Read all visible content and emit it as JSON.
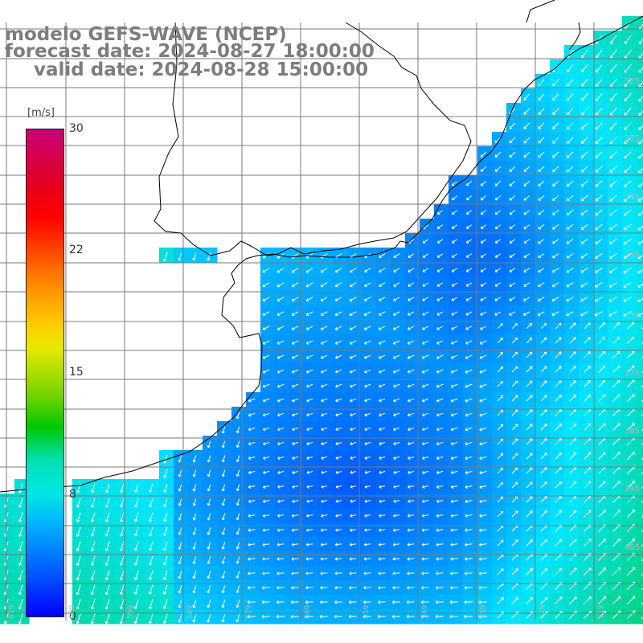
{
  "title": {
    "line1": "modelo GEFS-WAVE (NCEP)",
    "line2": "forecast date: 2024-08-27 18:00:00",
    "line3": "valid date: 2024-08-28 15:00:00"
  },
  "legend": {
    "unit": "[m/s]",
    "ticks": [
      {
        "label": "30",
        "value": 30
      },
      {
        "label": "22",
        "value": 22
      },
      {
        "label": "15",
        "value": 15
      },
      {
        "label": "8",
        "value": 8
      },
      {
        "label": "0",
        "value": 0
      }
    ],
    "range": [
      0,
      30
    ],
    "colors": [
      "#c8007a",
      "#ff0000",
      "#ff7a00",
      "#ffcc00",
      "#00c800",
      "#00e6e6",
      "#00aaff",
      "#0000ff"
    ]
  },
  "map": {
    "land_color": "#ffffff",
    "coast_color": "#000000",
    "grid_color": "#7a7a7a",
    "arrow_color": "#ffffff",
    "lat_labels": [
      "325",
      "335",
      "345",
      "355",
      "36",
      "375",
      "385",
      "395",
      "405"
    ],
    "lon_labels": [
      "619",
      "609",
      "599",
      "589",
      "579",
      "569",
      "559",
      "549",
      "539",
      "529",
      "519"
    ]
  }
}
